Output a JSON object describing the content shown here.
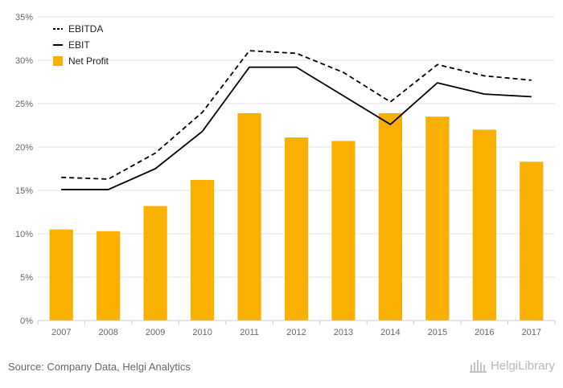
{
  "chart_data": {
    "type": "bar",
    "title": "",
    "xlabel": "",
    "ylabel": "",
    "categories": [
      "2007",
      "2008",
      "2009",
      "2010",
      "2011",
      "2012",
      "2013",
      "2014",
      "2015",
      "2016",
      "2017"
    ],
    "ylim": [
      0,
      35
    ],
    "yticks": [
      "0%",
      "5%",
      "10%",
      "15%",
      "20%",
      "25%",
      "30%",
      "35%"
    ],
    "grid": true,
    "legend_position": "top-left",
    "series": [
      {
        "name": "EBITDA",
        "type": "line",
        "style": "dashed",
        "color": "#000000",
        "values": [
          16.5,
          16.3,
          19.3,
          24.0,
          31.1,
          30.8,
          28.6,
          25.2,
          29.5,
          28.2,
          27.7
        ]
      },
      {
        "name": "EBIT",
        "type": "line",
        "style": "solid",
        "color": "#000000",
        "values": [
          15.1,
          15.1,
          17.5,
          21.8,
          29.2,
          29.2,
          25.9,
          22.6,
          27.4,
          26.1,
          25.8
        ]
      },
      {
        "name": "Net Profit",
        "type": "bar",
        "color": "#f9b000",
        "values": [
          10.5,
          10.3,
          13.2,
          16.2,
          23.9,
          21.1,
          20.7,
          23.9,
          23.5,
          22.0,
          18.3
        ]
      }
    ]
  },
  "footer": {
    "source": "Source: Company Data, Helgi Analytics",
    "brand": "HelgiLibrary"
  }
}
